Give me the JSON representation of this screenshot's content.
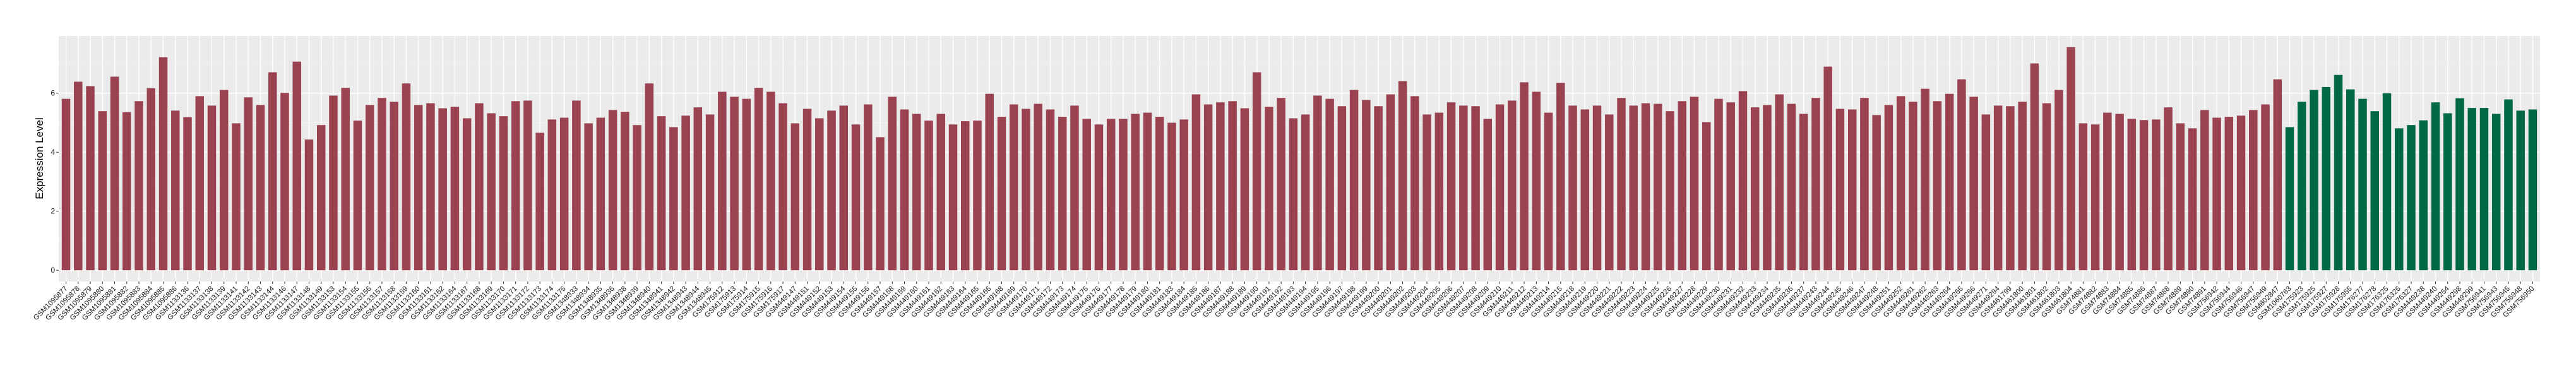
{
  "chart_data": {
    "type": "bar",
    "title": "",
    "xlabel": "",
    "ylabel": "Expression Level",
    "ylim": [
      -0.38,
      7.94
    ],
    "yticks": [
      0,
      2,
      4,
      6
    ],
    "grid": true,
    "background": "#EBEBEB",
    "groups": [
      {
        "color": "#9B4250",
        "categories": [
          "GSM1095877",
          "GSM1095878",
          "GSM1095879",
          "GSM1095880",
          "GSM1095881",
          "GSM1095882",
          "GSM1095883",
          "GSM1095884",
          "GSM1095885",
          "GSM1095886",
          "GSM1133136",
          "GSM1133137",
          "GSM1133138",
          "GSM1133139",
          "GSM1133141",
          "GSM1133142",
          "GSM1133143",
          "GSM1133144",
          "GSM1133146",
          "GSM1133147",
          "GSM1133148",
          "GSM1133149",
          "GSM1133153",
          "GSM1133154",
          "GSM1133155",
          "GSM1133156",
          "GSM1133157",
          "GSM1133158",
          "GSM1133159",
          "GSM1133160",
          "GSM1133161",
          "GSM1133162",
          "GSM1133164",
          "GSM1133167",
          "GSM1133168",
          "GSM1133169",
          "GSM1133170",
          "GSM1133171",
          "GSM1133172",
          "GSM1133173",
          "GSM1133174",
          "GSM1133175",
          "GSM1348933",
          "GSM1348934",
          "GSM1348935",
          "GSM1348936",
          "GSM1348938",
          "GSM1348939",
          "GSM1348940",
          "GSM1348941",
          "GSM1348942",
          "GSM1348943",
          "GSM1348944",
          "GSM1348945",
          "GSM175912",
          "GSM175913",
          "GSM175914",
          "GSM175915",
          "GSM175916",
          "GSM175917",
          "GSM449147",
          "GSM449151",
          "GSM449152",
          "GSM449153",
          "GSM449154",
          "GSM449155",
          "GSM449156",
          "GSM449157",
          "GSM449158",
          "GSM449159",
          "GSM449160",
          "GSM449161",
          "GSM449162",
          "GSM449163",
          "GSM449164",
          "GSM449165",
          "GSM449166",
          "GSM449168",
          "GSM449169",
          "GSM449170",
          "GSM449171",
          "GSM449172",
          "GSM449173",
          "GSM449174",
          "GSM449175",
          "GSM449176",
          "GSM449177",
          "GSM449178",
          "GSM449179",
          "GSM449180",
          "GSM449181",
          "GSM449183",
          "GSM449184",
          "GSM449185",
          "GSM449186",
          "GSM449187",
          "GSM449188",
          "GSM449189",
          "GSM449190",
          "GSM449191",
          "GSM449192",
          "GSM449193",
          "GSM449194",
          "GSM449195",
          "GSM449196",
          "GSM449197",
          "GSM449198",
          "GSM449199",
          "GSM449200",
          "GSM449201",
          "GSM449202",
          "GSM449203",
          "GSM449204",
          "GSM449205",
          "GSM449206",
          "GSM449207",
          "GSM449208",
          "GSM449209",
          "GSM449210",
          "GSM449211",
          "GSM449212",
          "GSM449213",
          "GSM449214",
          "GSM449215",
          "GSM449218",
          "GSM449219",
          "GSM449220",
          "GSM449221",
          "GSM449222",
          "GSM449223",
          "GSM449224",
          "GSM449225",
          "GSM449226",
          "GSM449227",
          "GSM449228",
          "GSM449229",
          "GSM449230",
          "GSM449231",
          "GSM449232",
          "GSM449233",
          "GSM449234",
          "GSM449235",
          "GSM449236",
          "GSM449237",
          "GSM449243",
          "GSM449244",
          "GSM449245",
          "GSM449246",
          "GSM449247",
          "GSM449248",
          "GSM449251",
          "GSM449252",
          "GSM449261",
          "GSM449262",
          "GSM449263",
          "GSM449264",
          "GSM449265",
          "GSM449266",
          "GSM449271",
          "GSM449294",
          "GSM461799",
          "GSM461800",
          "GSM461801",
          "GSM461802",
          "GSM461803",
          "GSM461804",
          "GSM74881",
          "GSM74882",
          "GSM74883",
          "GSM74884",
          "GSM74885",
          "GSM74886",
          "GSM74887",
          "GSM74888",
          "GSM74889",
          "GSM74890",
          "GSM74891",
          "GSM756942",
          "GSM756944",
          "GSM756946",
          "GSM756947",
          "GSM756949",
          "GSM802847"
        ],
        "values": [
          5.81,
          6.39,
          6.24,
          5.39,
          6.56,
          5.36,
          5.73,
          6.17,
          7.22,
          5.41,
          5.19,
          5.9,
          5.58,
          6.11,
          4.98,
          5.86,
          5.6,
          6.71,
          6.01,
          7.07,
          4.43,
          4.92,
          5.92,
          6.18,
          5.07,
          5.6,
          5.84,
          5.71,
          6.33,
          5.6,
          5.66,
          5.49,
          5.54,
          5.15,
          5.66,
          5.32,
          5.22,
          5.73,
          5.75,
          4.66,
          5.11,
          5.17,
          5.75,
          4.98,
          5.17,
          5.43,
          5.37,
          4.92,
          6.33,
          5.22,
          4.85,
          5.24,
          5.52,
          5.28,
          6.05,
          5.88,
          5.81,
          6.18,
          6.05,
          5.66,
          4.98,
          5.47,
          5.15,
          5.41,
          5.58,
          4.94,
          5.62,
          4.51,
          5.88,
          5.45,
          5.3,
          5.07,
          5.3,
          4.94,
          5.05,
          5.07,
          5.98,
          5.2,
          5.62,
          5.47,
          5.64,
          5.45,
          5.2,
          5.58,
          5.13,
          4.94,
          5.13,
          5.13,
          5.3,
          5.34,
          5.2,
          5.0,
          5.11,
          5.96,
          5.62,
          5.69,
          5.73,
          5.49,
          6.71,
          5.54,
          5.84,
          5.15,
          5.28,
          5.92,
          5.81,
          5.56,
          6.11,
          5.77,
          5.56,
          5.96,
          6.41,
          5.9,
          5.28,
          5.34,
          5.69,
          5.58,
          5.56,
          5.13,
          5.62,
          5.75,
          6.37,
          6.05,
          5.34,
          6.35,
          5.58,
          5.45,
          5.58,
          5.28,
          5.84,
          5.58,
          5.66,
          5.64,
          5.39,
          5.73,
          5.88,
          5.02,
          5.81,
          5.69,
          6.07,
          5.52,
          5.6,
          5.96,
          5.64,
          5.3,
          5.84,
          6.9,
          5.47,
          5.45,
          5.84,
          5.26,
          5.6,
          5.9,
          5.71,
          6.15,
          5.73,
          5.98,
          6.47,
          5.88,
          5.28,
          5.58,
          5.56,
          5.71,
          7.01,
          5.66,
          6.11,
          7.56,
          4.98,
          4.94,
          5.34,
          5.3,
          5.13,
          5.09,
          5.11,
          5.52,
          4.98,
          4.81,
          5.43,
          5.17,
          5.2,
          5.24,
          5.43,
          5.62,
          6.47
        ]
      },
      {
        "color": "#006845",
        "categories": [
          "GSM1060763",
          "GSM175923",
          "GSM175925",
          "GSM175927",
          "GSM175928",
          "GSM175955",
          "GSM176277",
          "GSM176278",
          "GSM176325",
          "GSM176326",
          "GSM176327",
          "GSM449238",
          "GSM449240",
          "GSM449254",
          "GSM449298",
          "GSM449299",
          "GSM756941",
          "GSM756943",
          "GSM756945",
          "GSM756948",
          "GSM756950"
        ],
        "values": [
          4.85,
          5.71,
          6.11,
          6.21,
          6.62,
          6.13,
          5.81,
          5.39,
          6.0,
          4.81,
          4.92,
          5.08,
          5.69,
          5.32,
          5.83,
          5.5,
          5.5,
          5.3,
          5.79,
          5.41,
          5.45
        ]
      }
    ]
  }
}
